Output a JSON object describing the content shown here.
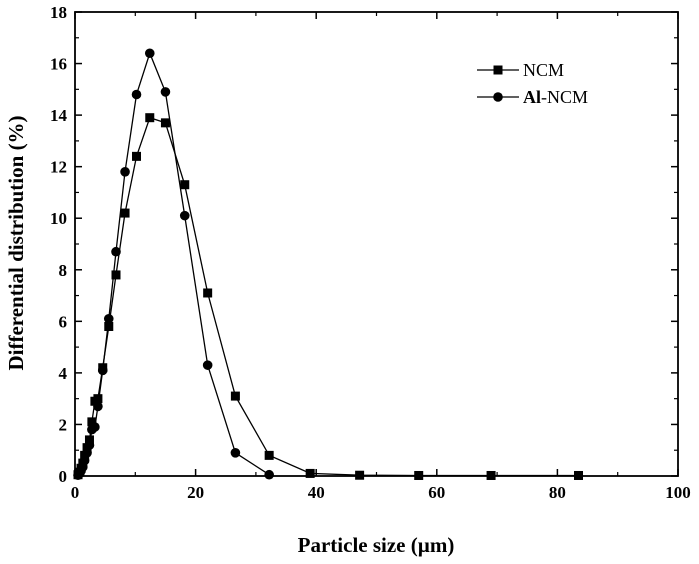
{
  "chart_data": {
    "type": "line",
    "title": "",
    "xlabel": "Particle size (µm)",
    "ylabel": "Differential distribution (%)",
    "xlim": [
      0,
      100
    ],
    "ylim": [
      0,
      18
    ],
    "xticks": [
      0,
      20,
      40,
      60,
      80,
      100
    ],
    "yticks": [
      0,
      2,
      4,
      6,
      8,
      10,
      12,
      14,
      16,
      18
    ],
    "grid": false,
    "legend_position": "top-right",
    "series": [
      {
        "name": "NCM",
        "marker": "square",
        "x": [
          0.5,
          0.8,
          1.0,
          1.3,
          1.6,
          2.0,
          2.4,
          2.8,
          3.3,
          3.8,
          4.6,
          5.6,
          6.8,
          8.3,
          10.2,
          12.4,
          15.0,
          18.2,
          22.0,
          26.6,
          32.2,
          39.0,
          47.2,
          57.0,
          69.0,
          83.5
        ],
        "y": [
          0.05,
          0.15,
          0.3,
          0.5,
          0.8,
          1.1,
          1.4,
          2.1,
          2.9,
          3.0,
          4.2,
          5.8,
          7.8,
          10.2,
          12.4,
          13.9,
          13.7,
          11.3,
          7.1,
          3.1,
          0.8,
          0.1,
          0.03,
          0.02,
          0.02,
          0.02
        ]
      },
      {
        "name": "Al-NCM",
        "name_prefix_bold": "Al",
        "name_suffix": "-NCM",
        "marker": "circle",
        "x": [
          0.5,
          0.8,
          1.0,
          1.3,
          1.6,
          2.0,
          2.4,
          2.8,
          3.3,
          3.8,
          4.6,
          5.6,
          6.8,
          8.3,
          10.2,
          12.4,
          15.0,
          18.2,
          22.0,
          26.6,
          32.2
        ],
        "y": [
          0.03,
          0.1,
          0.2,
          0.35,
          0.6,
          0.9,
          1.2,
          1.8,
          1.9,
          2.7,
          4.1,
          6.1,
          8.7,
          11.8,
          14.8,
          16.4,
          14.9,
          10.1,
          4.3,
          0.9,
          0.05
        ]
      }
    ]
  }
}
